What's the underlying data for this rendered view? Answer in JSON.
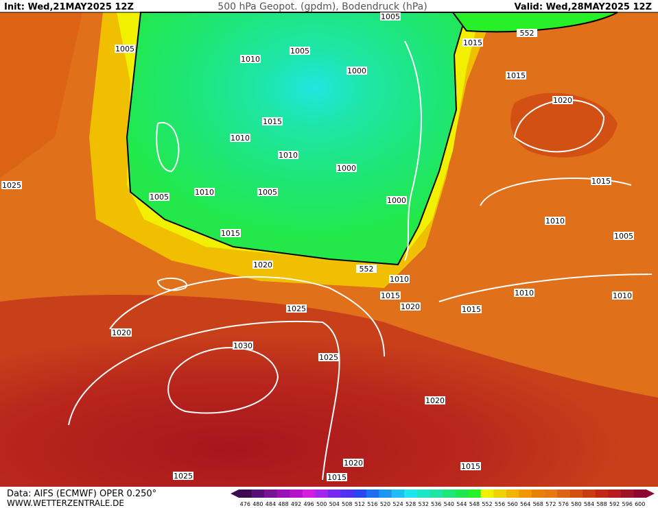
{
  "header": {
    "init": "Init: Wed,21MAY2025 12Z",
    "title": "500 hPa Geopot. (gpdm), Bodendruck (hPa)",
    "valid": "Valid: Wed,28MAY2025 12Z"
  },
  "footer": {
    "source": "Data: AIFS (ECMWF) OPER 0.250°",
    "site": "WWW.WETTERZENTRALE.DE"
  },
  "scale": {
    "values": [
      476,
      480,
      484,
      488,
      492,
      496,
      500,
      504,
      508,
      512,
      516,
      520,
      524,
      528,
      532,
      536,
      540,
      544,
      548,
      552,
      556,
      560,
      564,
      568,
      572,
      576,
      580,
      584,
      588,
      592,
      596,
      600
    ],
    "colors": [
      "#3c0a50",
      "#5a0f78",
      "#781496",
      "#9614b4",
      "#b414c8",
      "#d21ede",
      "#a028e6",
      "#7828f0",
      "#5032f0",
      "#2846f0",
      "#1e6ef0",
      "#1e96f0",
      "#1ebef0",
      "#1ee6f0",
      "#1ee6c8",
      "#1ee6a0",
      "#1ee678",
      "#1ee650",
      "#28f028",
      "#f0f000",
      "#f0d200",
      "#f0b400",
      "#f09600",
      "#e6820a",
      "#e67814",
      "#dc6414",
      "#d25014",
      "#c83c14",
      "#be2814",
      "#b41e1e",
      "#a01428",
      "#8c0a32"
    ]
  },
  "isobar_labels": [
    "1005",
    "552",
    "1005",
    "1005",
    "1015",
    "1010",
    "1000",
    "1015",
    "1020",
    "1015",
    "1010",
    "1010",
    "1000",
    "1015",
    "1025",
    "1005",
    "1010",
    "1005",
    "1000",
    "1010",
    "1015",
    "1005",
    "1020",
    "552",
    "1010",
    "1015",
    "1010",
    "1010",
    "1025",
    "1020",
    "1015",
    "1020",
    "1030",
    "1025",
    "1020",
    "1020",
    "1015",
    "1015",
    "1025"
  ]
}
